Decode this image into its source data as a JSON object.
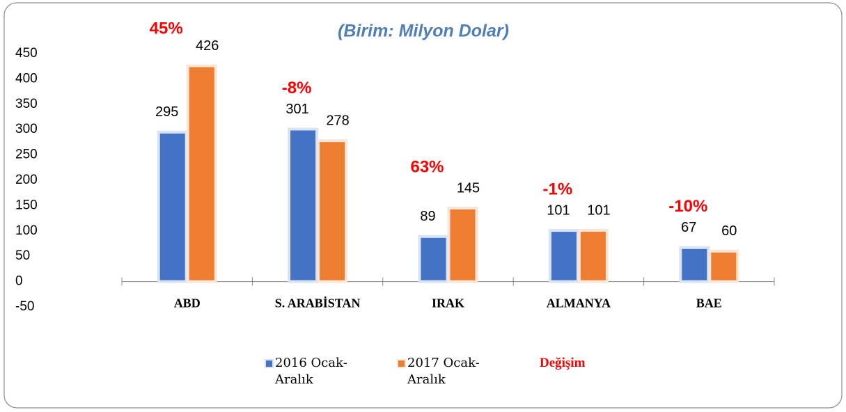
{
  "chart_data": {
    "type": "bar",
    "title": "(Birim: Milyon Dolar)",
    "categories": [
      "ABD",
      "S. ARABİSTAN",
      "IRAK",
      "ALMANYA",
      "BAE"
    ],
    "series": [
      {
        "name": "2016 Ocak-Aralık",
        "color": "#4472c4",
        "values": [
          295,
          301,
          89,
          101,
          67
        ]
      },
      {
        "name": "2017 Ocak-Aralık",
        "color": "#ed7d31",
        "values": [
          426,
          278,
          145,
          101,
          60
        ]
      },
      {
        "name": "Değişim",
        "color": "#ff0000",
        "values": [
          45,
          -8,
          63,
          -1,
          -10
        ],
        "value_labels": [
          "45%",
          "-8%",
          "63%",
          "-1%",
          "-10%"
        ]
      }
    ],
    "ylim": [
      -50,
      450
    ],
    "yticks": [
      -50,
      0,
      50,
      100,
      150,
      200,
      250,
      300,
      350,
      400,
      450
    ],
    "legend": "bottom"
  }
}
